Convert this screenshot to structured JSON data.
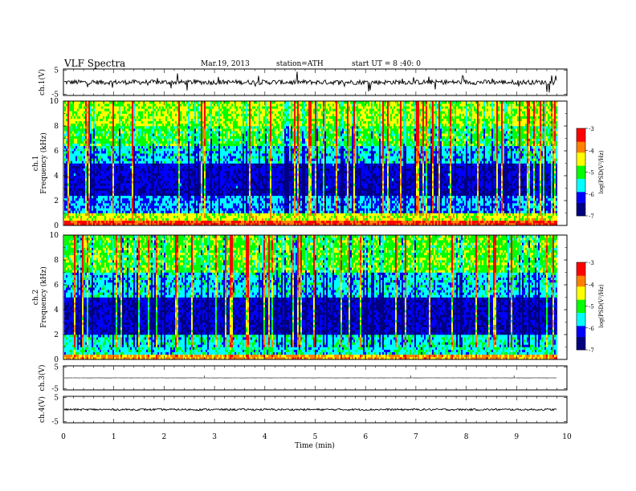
{
  "header": {
    "title": "VLF Spectra",
    "date": "Mar.19, 2013",
    "station": "station=ATH",
    "start": "start  UT =  8 :40: 0"
  },
  "chart_data": [
    {
      "type": "line",
      "name": "ch1-waveform",
      "ylabel": "ch.1(V)",
      "xlim": [
        0,
        10
      ],
      "ylim": [
        -5,
        5
      ],
      "yticks": [
        "5",
        "-5"
      ],
      "baseline": 0,
      "amplitude": 0.9,
      "data_end_min": 9.8
    },
    {
      "type": "heatmap",
      "name": "ch1-spectrogram",
      "ylabel": "ch.1\nFrequency  (kHz)",
      "xlim": [
        0,
        10
      ],
      "ylim": [
        0,
        10
      ],
      "yticks": [
        "0",
        "2",
        "4",
        "6",
        "8",
        "10"
      ],
      "data_end_min": 9.8,
      "colorbar": {
        "label": "log(PSD(V²/Hz)",
        "range": [
          -7,
          -3
        ],
        "ticks": [
          "-3",
          "-4",
          "-5",
          "-6",
          "-7"
        ]
      },
      "bands_kHz_logpsd": [
        {
          "f": [
            0,
            0.5
          ],
          "v": -3.5
        },
        {
          "f": [
            0.5,
            1
          ],
          "v": -4.5
        },
        {
          "f": [
            1,
            2.5
          ],
          "v": -5.8
        },
        {
          "f": [
            2.5,
            3
          ],
          "v": -6.5
        },
        {
          "f": [
            3,
            5
          ],
          "v": -6.3
        },
        {
          "f": [
            5,
            6.5
          ],
          "v": -5.6
        },
        {
          "f": [
            6.5,
            8
          ],
          "v": -5.0
        },
        {
          "f": [
            8,
            10
          ],
          "v": -4.6
        }
      ]
    },
    {
      "type": "heatmap",
      "name": "ch2-spectrogram",
      "ylabel": "ch.2\nFrequency  (kHz)",
      "xlim": [
        0,
        10
      ],
      "ylim": [
        0,
        10
      ],
      "yticks": [
        "0",
        "2",
        "4",
        "6",
        "8",
        "10"
      ],
      "data_end_min": 9.8,
      "colorbar": {
        "label": "log(PSD(V²/Hz)",
        "range": [
          -7,
          -3
        ],
        "ticks": [
          "-3",
          "-4",
          "-5",
          "-6",
          "-7"
        ]
      },
      "bands_kHz_logpsd": [
        {
          "f": [
            0,
            0.5
          ],
          "v": -4.0
        },
        {
          "f": [
            0.5,
            2
          ],
          "v": -5.5
        },
        {
          "f": [
            2,
            5
          ],
          "v": -6.4
        },
        {
          "f": [
            5,
            7
          ],
          "v": -5.6
        },
        {
          "f": [
            7,
            10
          ],
          "v": -4.9
        }
      ]
    },
    {
      "type": "line",
      "name": "ch3-waveform",
      "ylabel": "ch.3(V)",
      "xlim": [
        0,
        10
      ],
      "ylim": [
        -5,
        5
      ],
      "yticks": [
        "5",
        "-5"
      ],
      "baseline": 0,
      "amplitude": 0.05,
      "data_end_min": 9.8
    },
    {
      "type": "line",
      "name": "ch4-waveform",
      "ylabel": "ch.4(V)",
      "xlim": [
        0,
        10
      ],
      "ylim": [
        -5,
        5
      ],
      "yticks": [
        "5",
        "-5"
      ],
      "baseline": 0,
      "amplitude": 0.35,
      "data_end_min": 9.8
    }
  ],
  "xaxis": {
    "label": "Time  (min)",
    "ticks": [
      "0",
      "1",
      "2",
      "3",
      "4",
      "5",
      "6",
      "7",
      "8",
      "9",
      "10"
    ]
  },
  "colors": {
    "colormap": [
      "#000080",
      "#0000ff",
      "#00ffff",
      "#00ff00",
      "#ffff00",
      "#ff8000",
      "#ff0000",
      "#ffffff"
    ],
    "axes": "#000000"
  }
}
